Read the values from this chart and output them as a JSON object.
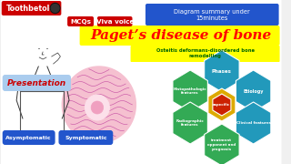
{
  "bg_color": "#f0f0f0",
  "title_text": "Paget’s disease of bone",
  "title_color": "#ff0000",
  "title_bg": "#ffff00",
  "subtitle_text": "Osteitis deformans-disordered bone\nremodelling",
  "subtitle_color": "#006400",
  "top_left_label": "Toothbetold",
  "top_left_bg": "#cc0000",
  "top_left_color": "#ffffff",
  "mcq_label": "MCQs",
  "mcq_bg": "#cc0000",
  "mcq_color": "#ffffff",
  "viva_label": "Viva voice",
  "viva_bg": "#cc0000",
  "viva_color": "#ffffff",
  "diagram_label": "Diagram summary under\n15minutes",
  "diagram_bg": "#2255cc",
  "diagram_color": "#ffffff",
  "presentation_label": "Presentation",
  "presentation_color": "#cc0000",
  "presentation_bg": "#aaccee",
  "asymp_label": "Asymptomatic",
  "asymp_bg": "#2255cc",
  "asymp_color": "#ffffff",
  "symp_label": "Symptomatic",
  "symp_bg": "#2255cc",
  "symp_color": "#ffffff",
  "hex_phases": "Phases",
  "hex_etiology": "Etiology",
  "hex_histopath": "Histopathologic\nfeatures",
  "hex_radio": "Radiographic\nfeatures",
  "hex_clinical": "Clinical features",
  "hex_treatment": "treatment\nopponent and\nprognosis",
  "hex_top_color": "#2299bb",
  "hex_left_color": "#33aa55",
  "hex_right_color": "#2299bb",
  "hex_bot_left_color": "#33aa55",
  "hex_bot_right_color": "#2299bb",
  "hex_bot_color": "#33aa55",
  "hex_center_red": "#cc2200",
  "hex_center_yellow": "#ddaa00",
  "hex_center_label": "aspecific",
  "figure_color": "#333333",
  "hist_circle_color": "#f5c0d0",
  "hist_circle_edge": "#cc88aa",
  "hist_line_color": "#cc44aa",
  "hist_inner_color": "#fce0ea"
}
